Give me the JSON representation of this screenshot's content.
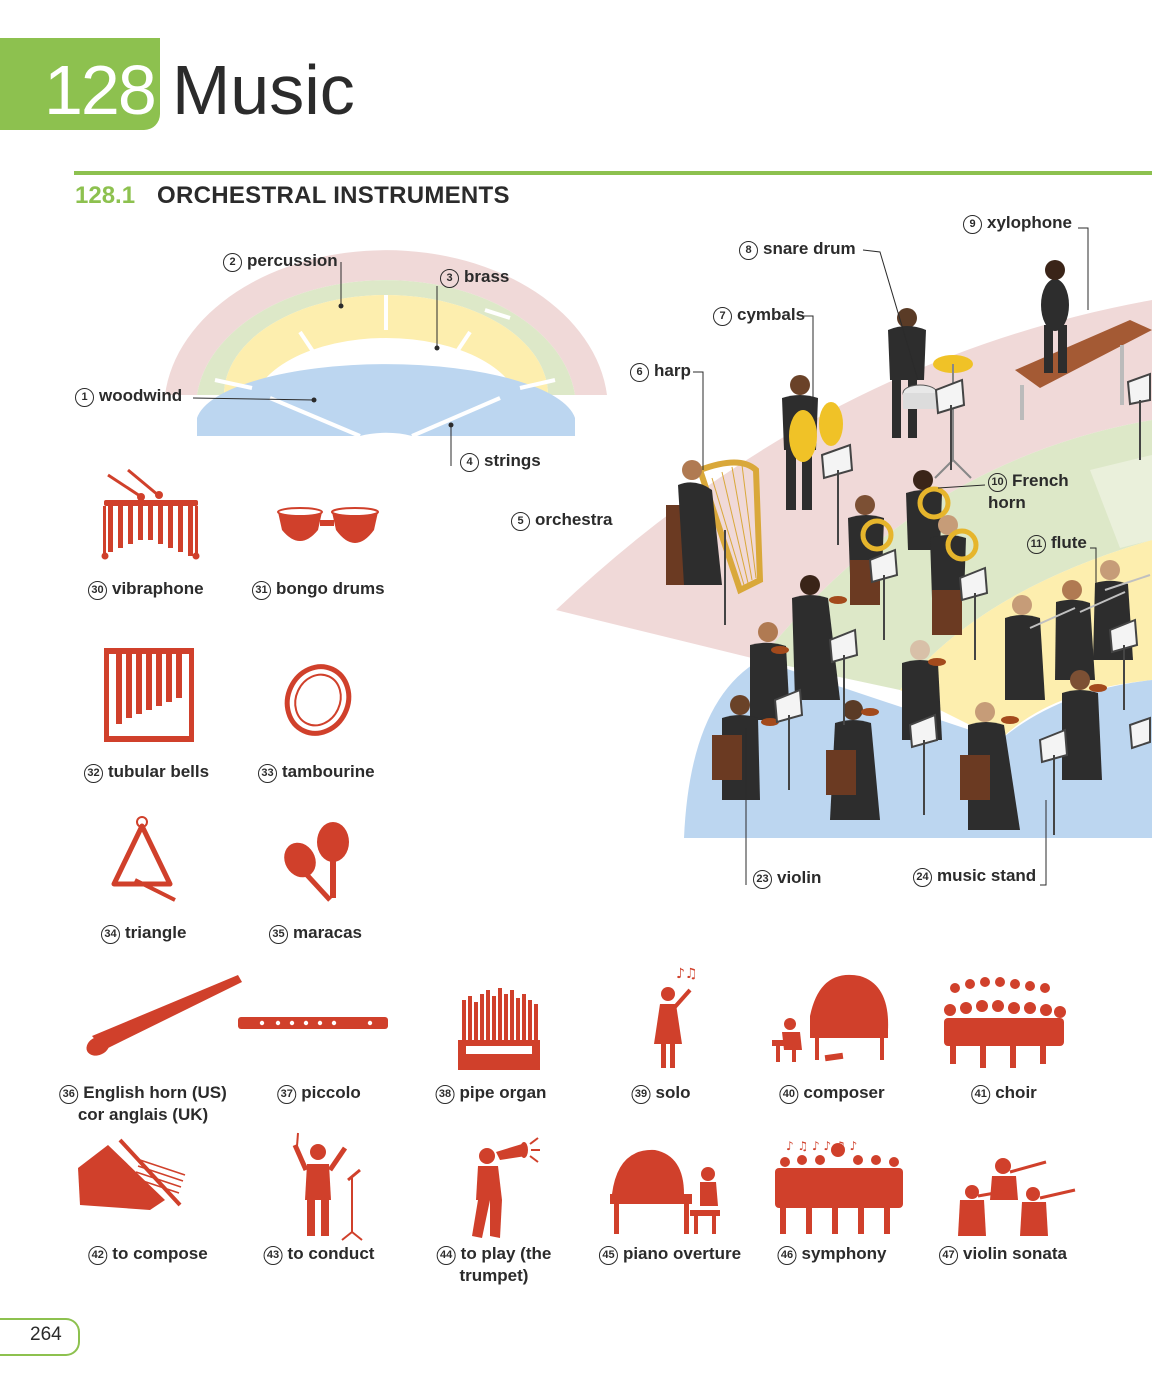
{
  "header": {
    "chapter_number": "128",
    "chapter_title": "Music"
  },
  "section": {
    "number": "128.1",
    "title": "ORCHESTRAL INSTRUMENTS"
  },
  "page_number": "264",
  "colors": {
    "accent": "#8dc14f",
    "icon": "#d0402b",
    "percussion_zone": "#f0d9d8",
    "brass_zone": "#dde8c8",
    "woodwind_zone": "#fdeeae",
    "strings_zone": "#bcd6f0"
  },
  "diagram": {
    "labels": [
      {
        "num": "1",
        "text": "woodwind"
      },
      {
        "num": "2",
        "text": "percussion"
      },
      {
        "num": "3",
        "text": "brass"
      },
      {
        "num": "4",
        "text": "strings"
      },
      {
        "num": "5",
        "text": "orchestra"
      },
      {
        "num": "6",
        "text": "harp"
      },
      {
        "num": "7",
        "text": "cymbals"
      },
      {
        "num": "8",
        "text": "snare drum"
      },
      {
        "num": "9",
        "text": "xylophone"
      },
      {
        "num": "10",
        "text": "French",
        "text2": "horn"
      },
      {
        "num": "11",
        "text": "flute"
      },
      {
        "num": "23",
        "text": "violin"
      },
      {
        "num": "24",
        "text": "music stand"
      }
    ]
  },
  "items": [
    {
      "num": "30",
      "text": "vibraphone",
      "icon": "vibraphone-icon"
    },
    {
      "num": "31",
      "text": "bongo drums",
      "icon": "bongo-drums-icon"
    },
    {
      "num": "32",
      "text": "tubular bells",
      "icon": "tubular-bells-icon"
    },
    {
      "num": "33",
      "text": "tambourine",
      "icon": "tambourine-icon"
    },
    {
      "num": "34",
      "text": "triangle",
      "icon": "triangle-icon"
    },
    {
      "num": "35",
      "text": "maracas",
      "icon": "maracas-icon"
    },
    {
      "num": "36",
      "text": "English horn (US)",
      "text2": "cor anglais (UK)",
      "icon": "english-horn-icon"
    },
    {
      "num": "37",
      "text": "piccolo",
      "icon": "piccolo-icon"
    },
    {
      "num": "38",
      "text": "pipe organ",
      "icon": "pipe-organ-icon"
    },
    {
      "num": "39",
      "text": "solo",
      "icon": "solo-singer-icon"
    },
    {
      "num": "40",
      "text": "composer",
      "icon": "composer-icon"
    },
    {
      "num": "41",
      "text": "choir",
      "icon": "choir-icon"
    },
    {
      "num": "42",
      "text": "to compose",
      "icon": "compose-hand-icon"
    },
    {
      "num": "43",
      "text": "to conduct",
      "icon": "conductor-icon"
    },
    {
      "num": "44",
      "text": "to play (the",
      "text2": "trumpet)",
      "icon": "trumpet-player-icon"
    },
    {
      "num": "45",
      "text": "piano overture",
      "icon": "piano-overture-icon"
    },
    {
      "num": "46",
      "text": "symphony",
      "icon": "symphony-icon"
    },
    {
      "num": "47",
      "text": "violin sonata",
      "icon": "violin-sonata-icon"
    }
  ]
}
